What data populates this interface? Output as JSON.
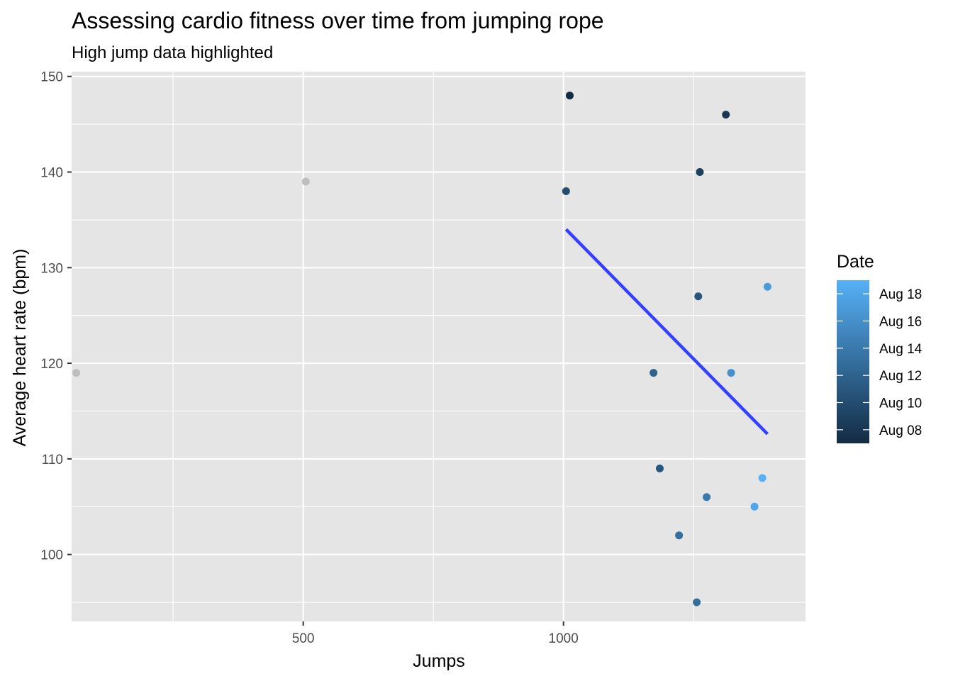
{
  "chart_data": {
    "type": "scatter",
    "title": "Assessing cardio fitness over time from jumping rope",
    "subtitle": "High jump data highlighted",
    "xlabel": "Jumps",
    "ylabel": "Average heart rate (bpm)",
    "xlim": [
      55,
      1465
    ],
    "ylim": [
      93,
      150.5
    ],
    "x_ticks": [
      500,
      1000
    ],
    "x_tick_labels": [
      "500",
      "1000"
    ],
    "y_ticks": [
      100,
      110,
      120,
      130,
      140,
      150
    ],
    "y_tick_labels": [
      "100",
      "110",
      "120",
      "130",
      "140",
      "150"
    ],
    "grid": true,
    "highlighted_points": [
      {
        "jumps": 1012,
        "bpm": 148,
        "date": "2023-08-07"
      },
      {
        "jumps": 1312,
        "bpm": 146,
        "date": "2023-08-08"
      },
      {
        "jumps": 1262,
        "bpm": 140,
        "date": "2023-08-09"
      },
      {
        "jumps": 1005,
        "bpm": 138,
        "date": "2023-08-10"
      },
      {
        "jumps": 1185,
        "bpm": 109,
        "date": "2023-08-11"
      },
      {
        "jumps": 1259,
        "bpm": 127,
        "date": "2023-08-11"
      },
      {
        "jumps": 1173,
        "bpm": 119,
        "date": "2023-08-12"
      },
      {
        "jumps": 1222,
        "bpm": 102,
        "date": "2023-08-13"
      },
      {
        "jumps": 1256,
        "bpm": 95,
        "date": "2023-08-13"
      },
      {
        "jumps": 1275,
        "bpm": 106,
        "date": "2023-08-14"
      },
      {
        "jumps": 1322,
        "bpm": 119,
        "date": "2023-08-16"
      },
      {
        "jumps": 1392,
        "bpm": 128,
        "date": "2023-08-17"
      },
      {
        "jumps": 1367,
        "bpm": 105,
        "date": "2023-08-18"
      },
      {
        "jumps": 1382,
        "bpm": 108,
        "date": "2023-08-19"
      }
    ],
    "other_points": [
      {
        "jumps": 64,
        "bpm": 119
      },
      {
        "jumps": 505,
        "bpm": 139
      }
    ],
    "trend_line": {
      "x": [
        1005,
        1392
      ],
      "y": [
        134,
        112.6
      ]
    },
    "legend": {
      "title": "Date",
      "labels": [
        "Aug 08",
        "Aug 10",
        "Aug 12",
        "Aug 14",
        "Aug 16",
        "Aug 18"
      ],
      "label_dates": [
        "2023-08-08",
        "2023-08-10",
        "2023-08-12",
        "2023-08-14",
        "2023-08-16",
        "2023-08-18"
      ],
      "date_range": [
        "2023-08-07",
        "2023-08-19"
      ],
      "placement": "right"
    },
    "colors": {
      "panel": "#e5e5e5",
      "grid": "#ffffff",
      "gradient_low": "#132b43",
      "gradient_high": "#56b1f7",
      "other_points": "#bebebe",
      "trend_line": "#3340ff"
    }
  }
}
